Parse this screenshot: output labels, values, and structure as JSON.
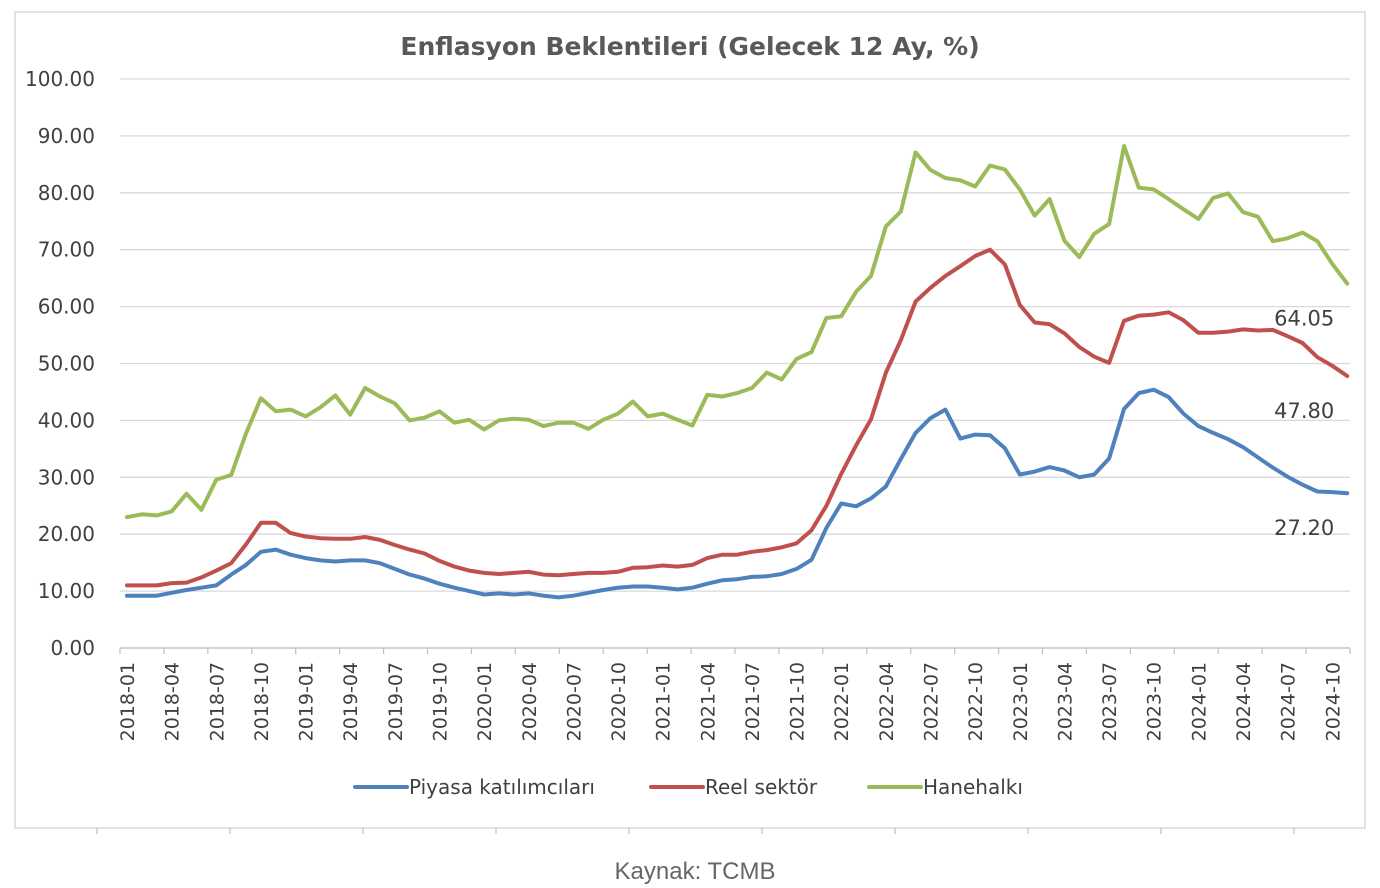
{
  "chart_data": {
    "type": "line",
    "title": "Enflasyon Beklentileri (Gelecek 12 Ay, %)",
    "ylim": [
      0,
      100
    ],
    "yticks": [
      "0.00",
      "10.00",
      "20.00",
      "30.00",
      "40.00",
      "50.00",
      "60.00",
      "70.00",
      "80.00",
      "90.00",
      "100.00"
    ],
    "x_start": "2018-01",
    "xtick_labels": [
      "2018-01",
      "2018-04",
      "2018-07",
      "2018-10",
      "2019-01",
      "2019-04",
      "2019-07",
      "2019-10",
      "2020-01",
      "2020-04",
      "2020-07",
      "2020-10",
      "2021-01",
      "2021-04",
      "2021-07",
      "2021-10",
      "2022-01",
      "2022-04",
      "2022-07",
      "2022-10",
      "2023-01",
      "2023-04",
      "2023-07",
      "2023-10",
      "2024-01",
      "2024-04",
      "2024-07",
      "2024-10"
    ],
    "grid": true,
    "legend_position": "bottom",
    "series": [
      {
        "name": "Piyasa katılımcıları",
        "color": "#4f81bd",
        "values": [
          9.2,
          9.2,
          9.2,
          9.7,
          10.2,
          10.6,
          11.0,
          12.9,
          14.6,
          16.9,
          17.3,
          16.4,
          15.8,
          15.4,
          15.2,
          15.4,
          15.4,
          14.9,
          13.9,
          12.9,
          12.2,
          11.3,
          10.6,
          10.0,
          9.4,
          9.6,
          9.4,
          9.6,
          9.2,
          8.9,
          9.2,
          9.7,
          10.2,
          10.6,
          10.8,
          10.8,
          10.6,
          10.3,
          10.6,
          11.3,
          11.9,
          12.1,
          12.5,
          12.6,
          13.0,
          13.9,
          15.5,
          21.1,
          25.4,
          24.9,
          26.3,
          28.4,
          33.2,
          37.8,
          40.4,
          41.9,
          36.8,
          37.5,
          37.4,
          35.1,
          30.5,
          31.0,
          31.8,
          31.2,
          30.0,
          30.5,
          33.3,
          42.0,
          44.8,
          45.4,
          44.1,
          41.2,
          39.0,
          37.8,
          36.7,
          35.3,
          33.5,
          31.7,
          30.1,
          28.7,
          27.5,
          27.4,
          27.2
        ]
      },
      {
        "name": "Reel sektör",
        "color": "#c0504d",
        "values": [
          11.0,
          11.0,
          11.0,
          11.4,
          11.5,
          12.4,
          13.6,
          14.9,
          18.2,
          22.0,
          22.0,
          20.2,
          19.6,
          19.3,
          19.2,
          19.2,
          19.5,
          19.0,
          18.1,
          17.3,
          16.6,
          15.3,
          14.3,
          13.6,
          13.2,
          13.0,
          13.2,
          13.4,
          12.9,
          12.8,
          13.0,
          13.2,
          13.2,
          13.4,
          14.1,
          14.2,
          14.5,
          14.3,
          14.6,
          15.8,
          16.4,
          16.4,
          16.9,
          17.2,
          17.7,
          18.4,
          20.7,
          25.0,
          30.6,
          35.6,
          40.2,
          48.4,
          54.1,
          60.9,
          63.3,
          65.4,
          67.1,
          68.9,
          70.0,
          67.4,
          60.3,
          57.2,
          56.9,
          55.3,
          52.9,
          51.2,
          50.1,
          57.5,
          58.4,
          58.6,
          59.0,
          57.6,
          55.4,
          55.4,
          55.6,
          56.0,
          55.8,
          55.9,
          54.8,
          53.6,
          51.1,
          49.6,
          47.8
        ]
      },
      {
        "name": "Hanehalkı",
        "color": "#9bbb59",
        "values": [
          23.0,
          23.5,
          23.3,
          24.0,
          27.1,
          24.3,
          29.6,
          30.4,
          37.7,
          43.9,
          41.6,
          41.9,
          40.7,
          42.3,
          44.4,
          41.0,
          45.7,
          44.2,
          43.0,
          40.0,
          40.5,
          41.6,
          39.6,
          40.1,
          38.4,
          40.0,
          40.3,
          40.1,
          39.0,
          39.6,
          39.6,
          38.5,
          40.1,
          41.2,
          43.3,
          40.7,
          41.2,
          40.1,
          39.1,
          44.5,
          44.2,
          44.8,
          45.7,
          48.4,
          47.2,
          50.8,
          52.0,
          58.0,
          58.3,
          62.6,
          65.4,
          74.1,
          76.7,
          87.1,
          84.0,
          82.6,
          82.2,
          81.1,
          84.8,
          84.1,
          80.6,
          76.0,
          78.9,
          71.6,
          68.7,
          72.8,
          74.5,
          88.2,
          80.9,
          80.6,
          78.9,
          77.1,
          75.4,
          79.1,
          79.9,
          76.6,
          75.8,
          71.5,
          72.0,
          73.0,
          71.5,
          67.5,
          64.05
        ]
      }
    ],
    "end_labels": [
      "64.05",
      "47.80",
      "27.20"
    ]
  },
  "source": "Kaynak: TCMB"
}
